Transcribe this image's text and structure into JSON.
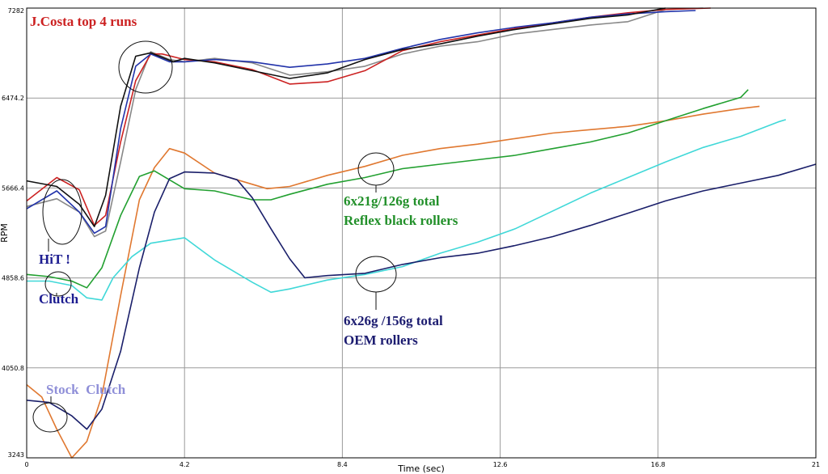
{
  "chart_data": {
    "type": "line",
    "xlabel": "Time (sec)",
    "ylabel": "RPM",
    "xlim": [
      0,
      21
    ],
    "ylim": [
      3243,
      7282
    ],
    "x_ticks": [
      "0",
      "4.2",
      "8.4",
      "12.6",
      "16.8",
      "21"
    ],
    "y_ticks": [
      "3243",
      "4050.8",
      "4858.6",
      "5666.4",
      "6474.2",
      "7282"
    ],
    "grid": true,
    "series": [
      {
        "color": "#cc2222",
        "values": [
          [
            0,
            5550
          ],
          [
            0.8,
            5760
          ],
          [
            1.4,
            5650
          ],
          [
            1.8,
            5330
          ],
          [
            2.1,
            5420
          ],
          [
            2.5,
            6080
          ],
          [
            2.9,
            6630
          ],
          [
            3.3,
            6870
          ],
          [
            3.6,
            6870
          ],
          [
            4.2,
            6820
          ],
          [
            5,
            6800
          ],
          [
            6,
            6730
          ],
          [
            7,
            6600
          ],
          [
            8,
            6620
          ],
          [
            9,
            6720
          ],
          [
            10,
            6900
          ],
          [
            11,
            6980
          ],
          [
            12,
            7040
          ],
          [
            13,
            7100
          ],
          [
            14,
            7150
          ],
          [
            15,
            7200
          ],
          [
            16,
            7240
          ],
          [
            17,
            7270
          ],
          [
            18.2,
            7282
          ]
        ]
      },
      {
        "color": "#111111",
        "values": [
          [
            0,
            5730
          ],
          [
            0.8,
            5680
          ],
          [
            1.4,
            5520
          ],
          [
            1.8,
            5320
          ],
          [
            2.1,
            5600
          ],
          [
            2.5,
            6400
          ],
          [
            2.9,
            6850
          ],
          [
            3.3,
            6880
          ],
          [
            3.9,
            6800
          ],
          [
            4.2,
            6830
          ],
          [
            5,
            6790
          ],
          [
            6,
            6720
          ],
          [
            7,
            6650
          ],
          [
            8,
            6700
          ],
          [
            9,
            6820
          ],
          [
            10,
            6910
          ],
          [
            11,
            6960
          ],
          [
            12,
            7030
          ],
          [
            13,
            7090
          ],
          [
            14,
            7140
          ],
          [
            15,
            7190
          ],
          [
            16,
            7220
          ],
          [
            17,
            7282
          ]
        ]
      },
      {
        "color": "#888888",
        "values": [
          [
            0,
            5500
          ],
          [
            0.8,
            5570
          ],
          [
            1.4,
            5450
          ],
          [
            1.8,
            5230
          ],
          [
            2.1,
            5280
          ],
          [
            2.5,
            5900
          ],
          [
            2.9,
            6550
          ],
          [
            3.3,
            6890
          ],
          [
            3.8,
            6820
          ],
          [
            4.2,
            6800
          ],
          [
            5,
            6830
          ],
          [
            6,
            6790
          ],
          [
            7,
            6680
          ],
          [
            8,
            6710
          ],
          [
            9,
            6760
          ],
          [
            10,
            6870
          ],
          [
            11,
            6940
          ],
          [
            12,
            6980
          ],
          [
            13,
            7050
          ],
          [
            14,
            7090
          ],
          [
            15,
            7130
          ],
          [
            16,
            7160
          ],
          [
            17,
            7270
          ],
          [
            18,
            7282
          ]
        ]
      },
      {
        "color": "#2233aa",
        "values": [
          [
            0,
            5480
          ],
          [
            0.8,
            5640
          ],
          [
            1.4,
            5450
          ],
          [
            1.8,
            5260
          ],
          [
            2.1,
            5320
          ],
          [
            2.5,
            6200
          ],
          [
            2.9,
            6760
          ],
          [
            3.3,
            6870
          ],
          [
            3.8,
            6800
          ],
          [
            4.2,
            6800
          ],
          [
            5,
            6820
          ],
          [
            6,
            6800
          ],
          [
            7,
            6750
          ],
          [
            8,
            6780
          ],
          [
            9,
            6830
          ],
          [
            10,
            6920
          ],
          [
            11,
            7000
          ],
          [
            12,
            7060
          ],
          [
            13,
            7110
          ],
          [
            14,
            7150
          ],
          [
            15,
            7200
          ],
          [
            16,
            7230
          ],
          [
            17,
            7250
          ],
          [
            17.8,
            7260
          ]
        ]
      },
      {
        "color": "#e07830",
        "values": [
          [
            0,
            3900
          ],
          [
            0.4,
            3790
          ],
          [
            0.8,
            3500
          ],
          [
            1.2,
            3243
          ],
          [
            1.6,
            3390
          ],
          [
            2,
            3800
          ],
          [
            2.5,
            4700
          ],
          [
            3,
            5560
          ],
          [
            3.4,
            5850
          ],
          [
            3.8,
            6020
          ],
          [
            4.2,
            5980
          ],
          [
            5,
            5800
          ],
          [
            6,
            5700
          ],
          [
            6.4,
            5660
          ],
          [
            7,
            5680
          ],
          [
            8,
            5780
          ],
          [
            9,
            5860
          ],
          [
            10,
            5960
          ],
          [
            11,
            6020
          ],
          [
            12,
            6060
          ],
          [
            13,
            6110
          ],
          [
            14,
            6160
          ],
          [
            15,
            6190
          ],
          [
            16,
            6220
          ],
          [
            17,
            6270
          ],
          [
            18,
            6330
          ],
          [
            19,
            6380
          ],
          [
            19.5,
            6400
          ]
        ]
      },
      {
        "color": "#22a030",
        "values": [
          [
            0,
            4890
          ],
          [
            0.6,
            4870
          ],
          [
            1.2,
            4830
          ],
          [
            1.6,
            4770
          ],
          [
            2,
            4950
          ],
          [
            2.5,
            5420
          ],
          [
            3,
            5770
          ],
          [
            3.4,
            5820
          ],
          [
            3.8,
            5740
          ],
          [
            4.2,
            5660
          ],
          [
            5,
            5640
          ],
          [
            6,
            5560
          ],
          [
            6.5,
            5560
          ],
          [
            7,
            5610
          ],
          [
            8,
            5700
          ],
          [
            9,
            5760
          ],
          [
            10,
            5840
          ],
          [
            11,
            5880
          ],
          [
            12,
            5920
          ],
          [
            13,
            5960
          ],
          [
            14,
            6020
          ],
          [
            15,
            6080
          ],
          [
            16,
            6160
          ],
          [
            17,
            6270
          ],
          [
            18,
            6380
          ],
          [
            19,
            6480
          ],
          [
            19.2,
            6550
          ]
        ]
      },
      {
        "color": "#40d8d8",
        "values": [
          [
            0,
            4830
          ],
          [
            0.6,
            4830
          ],
          [
            1.2,
            4790
          ],
          [
            1.6,
            4680
          ],
          [
            2,
            4660
          ],
          [
            2.3,
            4860
          ],
          [
            2.8,
            5050
          ],
          [
            3.3,
            5170
          ],
          [
            4.2,
            5220
          ],
          [
            5,
            5020
          ],
          [
            6,
            4820
          ],
          [
            6.5,
            4730
          ],
          [
            7,
            4760
          ],
          [
            8,
            4840
          ],
          [
            9,
            4890
          ],
          [
            10,
            4960
          ],
          [
            11,
            5080
          ],
          [
            12,
            5180
          ],
          [
            13,
            5300
          ],
          [
            14,
            5460
          ],
          [
            15,
            5620
          ],
          [
            16,
            5760
          ],
          [
            17,
            5900
          ],
          [
            18,
            6030
          ],
          [
            19,
            6130
          ],
          [
            20,
            6260
          ],
          [
            20.2,
            6280
          ]
        ]
      },
      {
        "color": "#1a1f6a",
        "values": [
          [
            0,
            3760
          ],
          [
            0.6,
            3740
          ],
          [
            1.2,
            3620
          ],
          [
            1.6,
            3500
          ],
          [
            2,
            3680
          ],
          [
            2.5,
            4200
          ],
          [
            3,
            4950
          ],
          [
            3.4,
            5450
          ],
          [
            3.8,
            5750
          ],
          [
            4.2,
            5810
          ],
          [
            5,
            5800
          ],
          [
            5.6,
            5740
          ],
          [
            6,
            5580
          ],
          [
            6.5,
            5300
          ],
          [
            7,
            5030
          ],
          [
            7.4,
            4860
          ],
          [
            8,
            4880
          ],
          [
            9,
            4900
          ],
          [
            10,
            4980
          ],
          [
            11,
            5040
          ],
          [
            12,
            5080
          ],
          [
            13,
            5150
          ],
          [
            14,
            5230
          ],
          [
            15,
            5330
          ],
          [
            16,
            5440
          ],
          [
            17,
            5550
          ],
          [
            18,
            5640
          ],
          [
            19,
            5710
          ],
          [
            20,
            5780
          ],
          [
            21,
            5880
          ]
        ]
      }
    ],
    "annotations": [
      {
        "text": "J.Costa top 4 runs",
        "color": "#cc2222"
      },
      {
        "text": "HiT !",
        "color": "#1c1c90"
      },
      {
        "text": "Clutch",
        "color": "#1c1c90"
      },
      {
        "text": "Stock  Clutch",
        "color": "#8f8fd8"
      },
      {
        "text": "6x21g/126g total",
        "color": "#22902a"
      },
      {
        "text": "Reflex black rollers",
        "color": "#22902a"
      },
      {
        "text": "6x26g /156g total",
        "color": "#1c1c70"
      },
      {
        "text": "OEM rollers",
        "color": "#1c1c70"
      }
    ]
  }
}
